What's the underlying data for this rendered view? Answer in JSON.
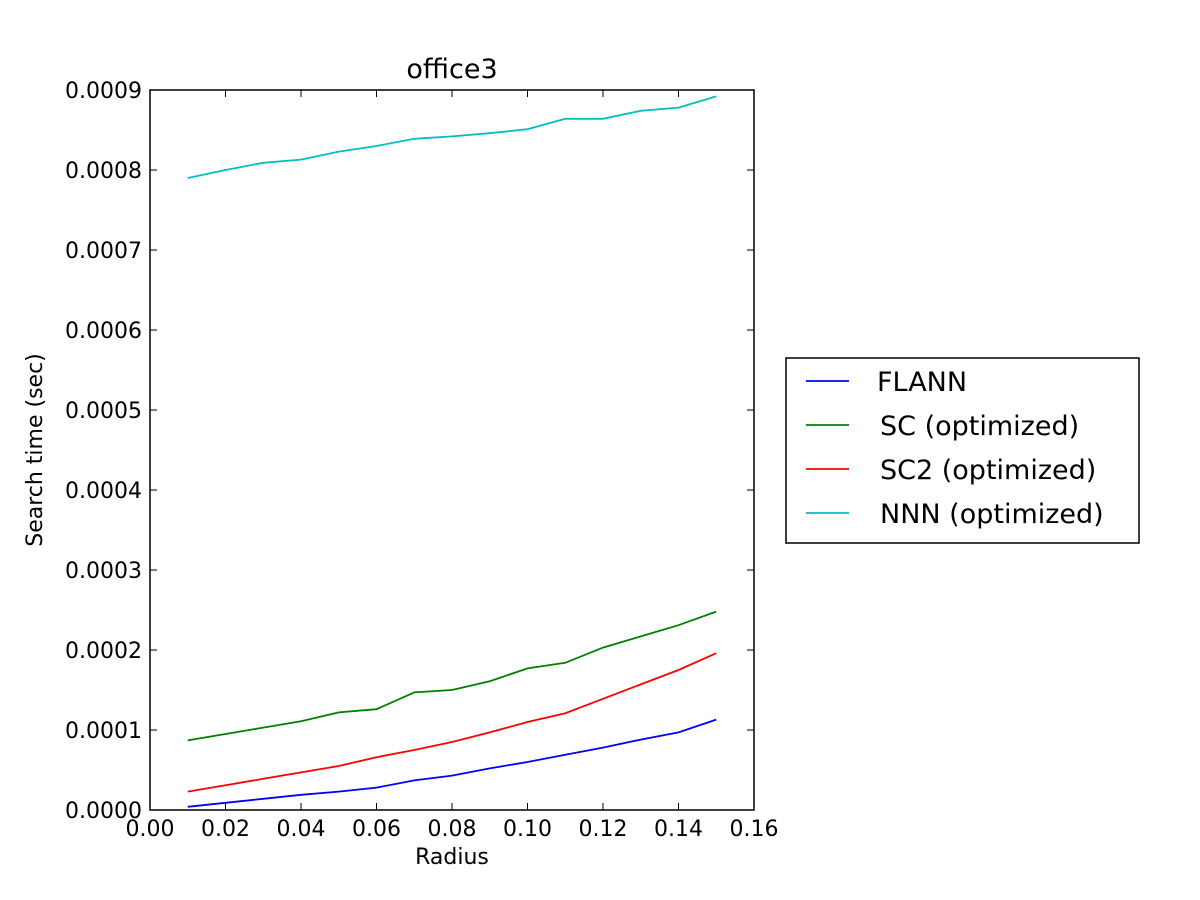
{
  "chart_data": {
    "type": "line",
    "title": "office3",
    "xlabel": "Radius",
    "ylabel": "Search time (sec)",
    "xlim": [
      0.0,
      0.16
    ],
    "ylim": [
      0.0,
      0.0009
    ],
    "xticks": [
      0.0,
      0.02,
      0.04,
      0.06,
      0.08,
      0.1,
      0.12,
      0.14,
      0.16
    ],
    "xtick_labels": [
      "0.00",
      "0.02",
      "0.04",
      "0.06",
      "0.08",
      "0.10",
      "0.12",
      "0.14",
      "0.16"
    ],
    "yticks": [
      0.0,
      0.0001,
      0.0002,
      0.0003,
      0.0004,
      0.0005,
      0.0006,
      0.0007,
      0.0008,
      0.0009
    ],
    "ytick_labels": [
      "0.0000",
      "0.0001",
      "0.0002",
      "0.0003",
      "0.0004",
      "0.0005",
      "0.0006",
      "0.0007",
      "0.0008",
      "0.0009"
    ],
    "grid": false,
    "legend_position": "outside-right",
    "x": [
      0.01,
      0.02,
      0.03,
      0.04,
      0.05,
      0.06,
      0.07,
      0.08,
      0.09,
      0.1,
      0.11,
      0.12,
      0.13,
      0.14,
      0.15
    ],
    "series": [
      {
        "name": "FLANN",
        "color": "#0000ff",
        "values": [
          4e-06,
          9e-06,
          1.4e-05,
          1.9e-05,
          2.3e-05,
          2.8e-05,
          3.7e-05,
          4.3e-05,
          5.2e-05,
          6e-05,
          6.9e-05,
          7.8e-05,
          8.8e-05,
          9.7e-05,
          0.000113
        ]
      },
      {
        "name": "SC (optimized)",
        "color": "#008000",
        "values": [
          8.7e-05,
          9.5e-05,
          0.000103,
          0.000111,
          0.000122,
          0.000126,
          0.000147,
          0.00015,
          0.000161,
          0.000177,
          0.000184,
          0.000203,
          0.000217,
          0.000231,
          0.000248
        ]
      },
      {
        "name": "SC2 (optimized)",
        "color": "#ff0000",
        "values": [
          2.3e-05,
          3.1e-05,
          3.9e-05,
          4.7e-05,
          5.5e-05,
          6.6e-05,
          7.5e-05,
          8.5e-05,
          9.7e-05,
          0.00011,
          0.000121,
          0.000139,
          0.000157,
          0.000175,
          0.000196
        ]
      },
      {
        "name": "NNN (optimized)",
        "color": "#00bfbf",
        "values": [
          0.00079,
          0.0008,
          0.000809,
          0.000813,
          0.000823,
          0.00083,
          0.000839,
          0.000842,
          0.000846,
          0.000851,
          0.000864,
          0.000864,
          0.000874,
          0.000878,
          0.000892
        ]
      }
    ]
  }
}
